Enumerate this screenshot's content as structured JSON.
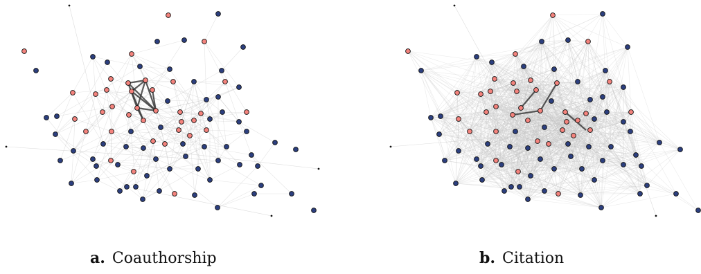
{
  "colors": {
    "node_red": "#f4837d",
    "node_blue": "#2c3f7f",
    "node_stroke": "#111111",
    "edge_light": "#c4c4c4",
    "edge_dark": "#3c3c3c"
  },
  "panels": [
    {
      "letter": "a.",
      "title": "Coauthorship",
      "red_nodes": [
        [
          243,
          22
        ],
        [
          190,
          78
        ],
        [
          295,
          60
        ],
        [
          35,
          74
        ],
        [
          160,
          114
        ],
        [
          210,
          116
        ],
        [
          185,
          120
        ],
        [
          250,
          118
        ],
        [
          325,
          118
        ],
        [
          154,
          130
        ],
        [
          190,
          132
        ],
        [
          220,
          130
        ],
        [
          138,
          136
        ],
        [
          105,
          134
        ],
        [
          162,
          154
        ],
        [
          198,
          156
        ],
        [
          225,
          160
        ],
        [
          260,
          162
        ],
        [
          290,
          164
        ],
        [
          148,
          162
        ],
        [
          186,
          166
        ],
        [
          207,
          174
        ],
        [
          108,
          172
        ],
        [
          262,
          176
        ],
        [
          356,
          162
        ],
        [
          280,
          174
        ],
        [
          124,
          190
        ],
        [
          161,
          190
        ],
        [
          258,
          188
        ],
        [
          298,
          188
        ],
        [
          274,
          196
        ],
        [
          221,
          204
        ],
        [
          238,
          208
        ],
        [
          160,
          232
        ],
        [
          193,
          248
        ],
        [
          252,
          280
        ]
      ],
      "blue_nodes": [
        [
          315,
          20
        ],
        [
          227,
          60
        ],
        [
          266,
          58
        ],
        [
          351,
          68
        ],
        [
          134,
          82
        ],
        [
          155,
          90
        ],
        [
          52,
          102
        ],
        [
          245,
          100
        ],
        [
          202,
          96
        ],
        [
          320,
          102
        ],
        [
          280,
          118
        ],
        [
          345,
          126
        ],
        [
          315,
          140
        ],
        [
          298,
          144
        ],
        [
          242,
          146
        ],
        [
          67,
          170
        ],
        [
          82,
          168
        ],
        [
          321,
          162
        ],
        [
          303,
          172
        ],
        [
          345,
          176
        ],
        [
          232,
          184
        ],
        [
          189,
          190
        ],
        [
          80,
          194
        ],
        [
          356,
          190
        ],
        [
          207,
          214
        ],
        [
          149,
          208
        ],
        [
          182,
          212
        ],
        [
          264,
          208
        ],
        [
          295,
          212
        ],
        [
          327,
          212
        ],
        [
          397,
          206
        ],
        [
          106,
          218
        ],
        [
          134,
          230
        ],
        [
          315,
          232
        ],
        [
          225,
          230
        ],
        [
          268,
          226
        ],
        [
          363,
          224
        ],
        [
          87,
          232
        ],
        [
          427,
          216
        ],
        [
          139,
          240
        ],
        [
          170,
          238
        ],
        [
          245,
          244
        ],
        [
          286,
          244
        ],
        [
          346,
          238
        ],
        [
          372,
          240
        ],
        [
          212,
          254
        ],
        [
          173,
          276
        ],
        [
          196,
          270
        ],
        [
          303,
          260
        ],
        [
          140,
          260
        ],
        [
          103,
          265
        ],
        [
          183,
          270
        ],
        [
          230,
          276
        ],
        [
          377,
          268
        ],
        [
          206,
          288
        ],
        [
          281,
          282
        ],
        [
          367,
          280
        ],
        [
          421,
          280
        ],
        [
          314,
          300
        ],
        [
          453,
          304
        ]
      ],
      "tiny_nodes": [
        [
          100,
          8
        ],
        [
          9,
          212
        ],
        [
          460,
          244
        ],
        [
          392,
          312
        ]
      ],
      "heavy_edges": [
        [
          [
            190,
            132
          ],
          [
            225,
            160
          ]
        ],
        [
          [
            190,
            132
          ],
          [
            207,
            174
          ]
        ],
        [
          [
            185,
            120
          ],
          [
            210,
            116
          ]
        ],
        [
          [
            185,
            120
          ],
          [
            198,
            156
          ]
        ],
        [
          [
            210,
            116
          ],
          [
            225,
            160
          ]
        ],
        [
          [
            198,
            156
          ],
          [
            207,
            174
          ]
        ],
        [
          [
            210,
            116
          ],
          [
            190,
            132
          ]
        ],
        [
          [
            198,
            156
          ],
          [
            225,
            160
          ]
        ],
        [
          [
            220,
            130
          ],
          [
            225,
            160
          ]
        ],
        [
          [
            210,
            116
          ],
          [
            198,
            156
          ]
        ],
        [
          [
            185,
            120
          ],
          [
            225,
            160
          ]
        ]
      ]
    },
    {
      "letter": "b.",
      "title": "Citation",
      "red_nodes": [
        [
          242,
          22
        ],
        [
          188,
          78
        ],
        [
          293,
          60
        ],
        [
          33,
          74
        ],
        [
          158,
          114
        ],
        [
          210,
          116
        ],
        [
          185,
          120
        ],
        [
          248,
          120
        ],
        [
          324,
          118
        ],
        [
          152,
          132
        ],
        [
          190,
          132
        ],
        [
          218,
          130
        ],
        [
          138,
          136
        ],
        [
          104,
          134
        ],
        [
          160,
          154
        ],
        [
          196,
          156
        ],
        [
          224,
          160
        ],
        [
          260,
          162
        ],
        [
          290,
          164
        ],
        [
          146,
          162
        ],
        [
          184,
          166
        ],
        [
          206,
          174
        ],
        [
          106,
          172
        ],
        [
          262,
          176
        ],
        [
          355,
          162
        ],
        [
          278,
          174
        ],
        [
          122,
          190
        ],
        [
          160,
          190
        ],
        [
          256,
          188
        ],
        [
          296,
          188
        ],
        [
          272,
          196
        ],
        [
          220,
          204
        ],
        [
          236,
          208
        ],
        [
          160,
          232
        ],
        [
          192,
          248
        ],
        [
          250,
          280
        ]
      ],
      "blue_nodes": [
        [
          314,
          20
        ],
        [
          226,
          60
        ],
        [
          264,
          58
        ],
        [
          350,
          68
        ],
        [
          132,
          82
        ],
        [
          154,
          90
        ],
        [
          52,
          102
        ],
        [
          244,
          100
        ],
        [
          200,
          96
        ],
        [
          318,
          102
        ],
        [
          278,
          118
        ],
        [
          344,
          126
        ],
        [
          314,
          140
        ],
        [
          296,
          144
        ],
        [
          240,
          146
        ],
        [
          66,
          170
        ],
        [
          80,
          168
        ],
        [
          320,
          162
        ],
        [
          302,
          172
        ],
        [
          344,
          176
        ],
        [
          230,
          184
        ],
        [
          188,
          190
        ],
        [
          78,
          194
        ],
        [
          354,
          190
        ],
        [
          206,
          214
        ],
        [
          148,
          208
        ],
        [
          180,
          212
        ],
        [
          264,
          208
        ],
        [
          294,
          212
        ],
        [
          326,
          212
        ],
        [
          396,
          206
        ],
        [
          106,
          218
        ],
        [
          132,
          230
        ],
        [
          314,
          232
        ],
        [
          224,
          230
        ],
        [
          268,
          226
        ],
        [
          362,
          224
        ],
        [
          86,
          232
        ],
        [
          426,
          216
        ],
        [
          138,
          240
        ],
        [
          168,
          238
        ],
        [
          244,
          244
        ],
        [
          284,
          244
        ],
        [
          344,
          238
        ],
        [
          370,
          240
        ],
        [
          210,
          254
        ],
        [
          172,
          276
        ],
        [
          194,
          270
        ],
        [
          302,
          260
        ],
        [
          140,
          260
        ],
        [
          102,
          265
        ],
        [
          182,
          270
        ],
        [
          230,
          276
        ],
        [
          378,
          268
        ],
        [
          206,
          288
        ],
        [
          282,
          282
        ],
        [
          368,
          280
        ],
        [
          420,
          280
        ],
        [
          312,
          300
        ],
        [
          452,
          304
        ]
      ],
      "tiny_nodes": [
        [
          100,
          8
        ],
        [
          8,
          212
        ],
        [
          391,
          312
        ]
      ],
      "heavy_edges": [
        [
          [
            184,
            166
          ],
          [
            224,
            160
          ]
        ],
        [
          [
            260,
            162
          ],
          [
            290,
            188
          ]
        ],
        [
          [
            196,
            156
          ],
          [
            218,
            130
          ]
        ],
        [
          [
            224,
            160
          ],
          [
            248,
            120
          ]
        ]
      ]
    }
  ]
}
